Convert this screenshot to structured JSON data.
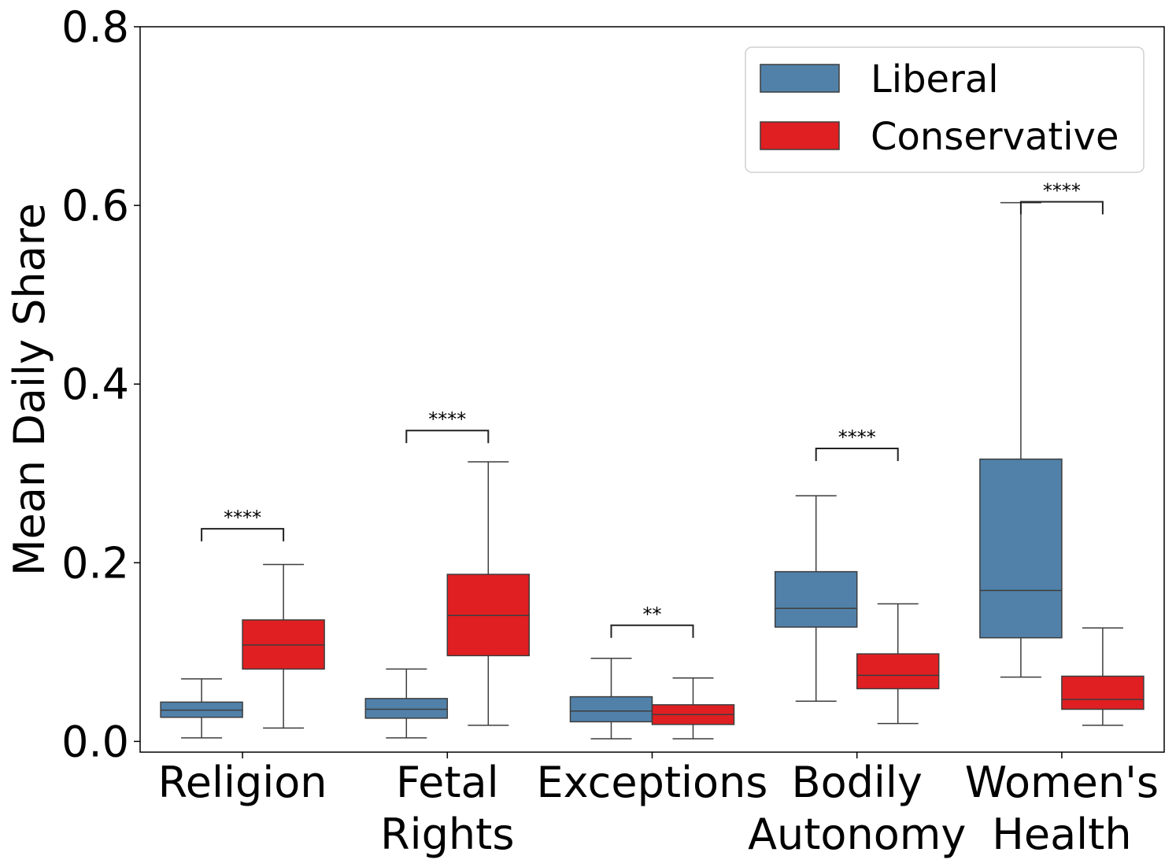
{
  "chart_data": {
    "type": "box",
    "title": "",
    "xlabel": "",
    "ylabel": "Mean Daily Share",
    "ylim": [
      -0.012,
      0.8
    ],
    "yticks": [
      0.0,
      0.2,
      0.4,
      0.6,
      0.8
    ],
    "ytick_labels": [
      "0.0",
      "0.2",
      "0.4",
      "0.6",
      "0.8"
    ],
    "categories": [
      {
        "lines": [
          "Religion"
        ]
      },
      {
        "lines": [
          "Fetal",
          "Rights"
        ]
      },
      {
        "lines": [
          "Exceptions"
        ]
      },
      {
        "lines": [
          "Bodily",
          "Autonomy"
        ]
      },
      {
        "lines": [
          "Women's",
          "Health"
        ]
      }
    ],
    "series": [
      {
        "name": "Liberal",
        "color": "#5181a9",
        "boxes": [
          {
            "whislo": 0.004,
            "q1": 0.027,
            "med": 0.035,
            "q3": 0.044,
            "whishi": 0.07
          },
          {
            "whislo": 0.004,
            "q1": 0.026,
            "med": 0.036,
            "q3": 0.048,
            "whishi": 0.081
          },
          {
            "whislo": 0.003,
            "q1": 0.022,
            "med": 0.034,
            "q3": 0.05,
            "whishi": 0.093
          },
          {
            "whislo": 0.045,
            "q1": 0.128,
            "med": 0.149,
            "q3": 0.19,
            "whishi": 0.275
          },
          {
            "whislo": 0.072,
            "q1": 0.116,
            "med": 0.169,
            "q3": 0.316,
            "whishi": 0.603
          }
        ]
      },
      {
        "name": "Conservative",
        "color": "#e01f22",
        "boxes": [
          {
            "whislo": 0.015,
            "q1": 0.081,
            "med": 0.108,
            "q3": 0.136,
            "whishi": 0.198
          },
          {
            "whislo": 0.018,
            "q1": 0.096,
            "med": 0.141,
            "q3": 0.187,
            "whishi": 0.313
          },
          {
            "whislo": 0.003,
            "q1": 0.019,
            "med": 0.03,
            "q3": 0.041,
            "whishi": 0.071
          },
          {
            "whislo": 0.02,
            "q1": 0.059,
            "med": 0.074,
            "q3": 0.098,
            "whishi": 0.154
          },
          {
            "whislo": 0.018,
            "q1": 0.036,
            "med": 0.047,
            "q3": 0.073,
            "whishi": 0.127
          }
        ]
      }
    ],
    "significance": [
      {
        "label": "****",
        "y": 0.238
      },
      {
        "label": "****",
        "y": 0.348
      },
      {
        "label": "**",
        "y": 0.13
      },
      {
        "label": "****",
        "y": 0.328
      },
      {
        "label": "****",
        "y": 0.604
      }
    ],
    "legend": {
      "position": "top-right",
      "entries": [
        "Liberal",
        "Conservative"
      ]
    }
  }
}
